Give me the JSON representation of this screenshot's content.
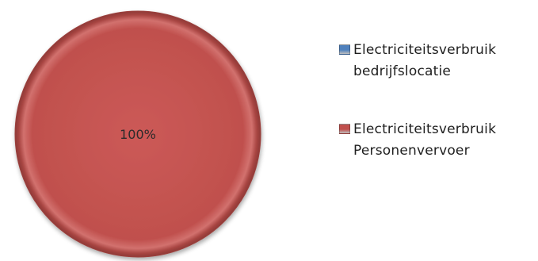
{
  "chart_data": {
    "type": "pie",
    "title": "",
    "categories": [
      "Electriciteitsverbruik\nbedrijfslocatie",
      "Electriciteitsverbruik\nPersonenvervoer"
    ],
    "values": [
      0,
      100
    ],
    "data_labels": [
      "",
      "100%"
    ],
    "colors": [
      "#4f81bd",
      "#c0504d"
    ],
    "legend_position": "right",
    "style": "3d-beveled"
  }
}
